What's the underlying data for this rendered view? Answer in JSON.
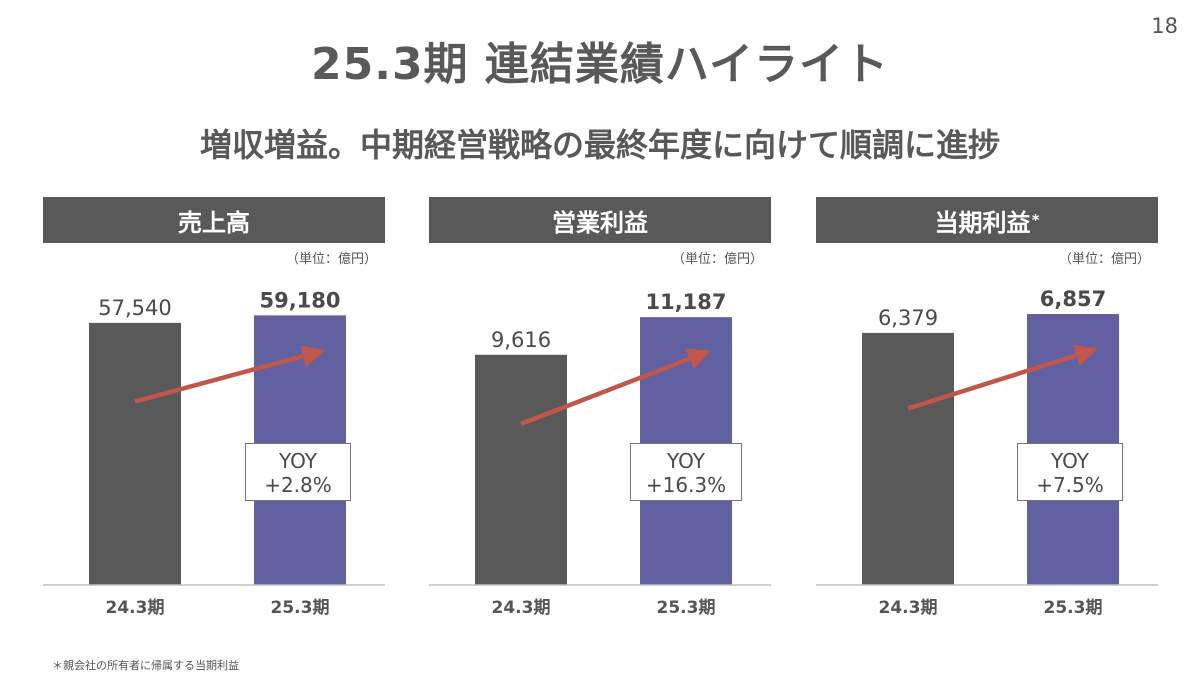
{
  "page_number": "18",
  "title": "25.3期 連結業績ハイライト",
  "subtitle": "増収増益。中期経営戦略の最終年度に向けて順調に進捗",
  "footnote": "＊親会社の所有者に帰属する当期利益",
  "colors": {
    "previous": "#595959",
    "current": "#6160a0",
    "arrow": "#c0574a",
    "header": "#595959"
  },
  "chart_data": [
    {
      "type": "bar",
      "title": "売上高",
      "unit": "（単位：億円）",
      "categories": [
        "24.3期",
        "25.3期"
      ],
      "values": [
        57540,
        59180
      ],
      "value_labels": [
        "57,540",
        "59,180"
      ],
      "yoy_label": "YOY",
      "yoy_value": "+2.8%",
      "ylim": [
        0,
        72000
      ]
    },
    {
      "type": "bar",
      "title": "営業利益",
      "unit": "（単位：億円）",
      "categories": [
        "24.3期",
        "25.3期"
      ],
      "values": [
        9616,
        11187
      ],
      "value_labels": [
        "9,616",
        "11,187"
      ],
      "yoy_label": "YOY",
      "yoy_value": "+16.3%",
      "ylim": [
        0,
        13700
      ]
    },
    {
      "type": "bar",
      "title": "当期利益",
      "title_mark": "*",
      "unit": "（単位：億円）",
      "categories": [
        "24.3期",
        "25.3期"
      ],
      "values": [
        6379,
        6857
      ],
      "value_labels": [
        "6,379",
        "6,857"
      ],
      "yoy_label": "YOY",
      "yoy_value": "+7.5%",
      "ylim": [
        0,
        8300
      ]
    }
  ]
}
